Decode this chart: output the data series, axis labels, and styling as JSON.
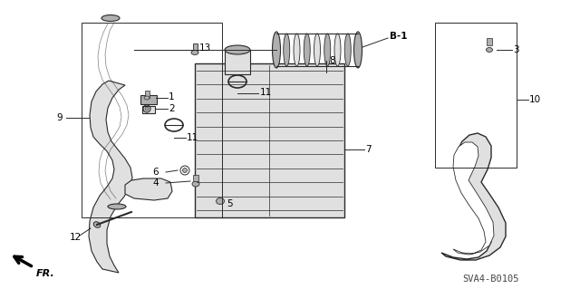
{
  "background_color": "#ffffff",
  "line_color": "#2a2a2a",
  "diagram_code": "SVA4-B0105",
  "gray_fill": "#c8c8c8",
  "light_gray": "#e0e0e0",
  "mid_gray": "#b0b0b0"
}
